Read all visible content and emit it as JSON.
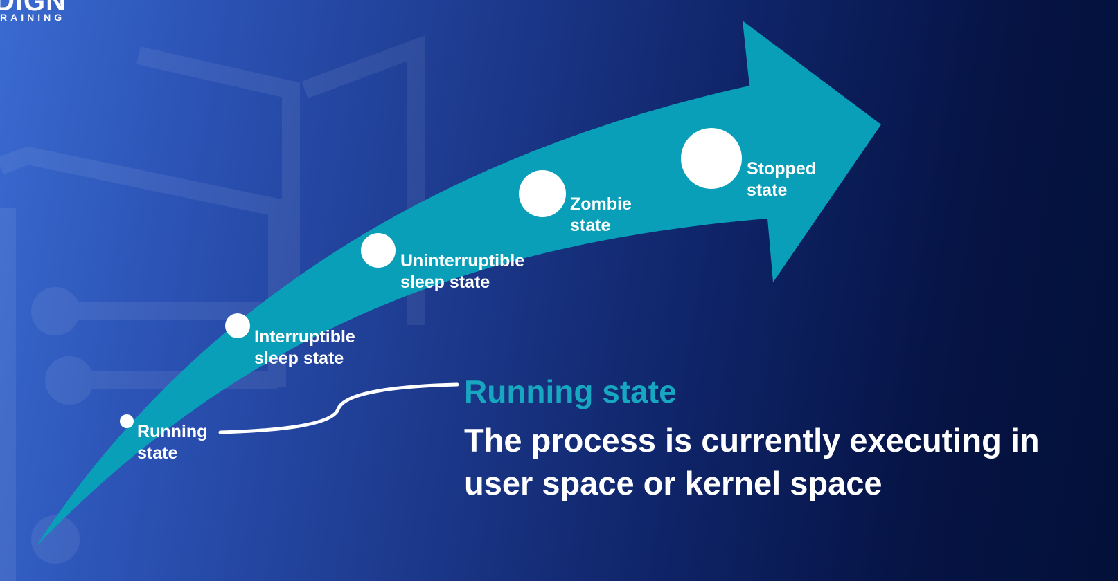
{
  "logo": {
    "word": "DIGN",
    "sub": "RAINING"
  },
  "colors": {
    "arrow": "#0a9fb9",
    "accent_text": "#17a7c0",
    "dot": "#ffffff",
    "text": "#ffffff"
  },
  "states": [
    {
      "id": "running",
      "label": "Running\nstate"
    },
    {
      "id": "interruptible",
      "label": "Interruptible\nsleep state"
    },
    {
      "id": "uninterruptible",
      "label": "Uninterruptible\nsleep state"
    },
    {
      "id": "zombie",
      "label": "Zombie\nstate"
    },
    {
      "id": "stopped",
      "label": "Stopped\nstate"
    }
  ],
  "detail": {
    "title": "Running state",
    "description": "The process is currently executing in user space or kernel space"
  }
}
